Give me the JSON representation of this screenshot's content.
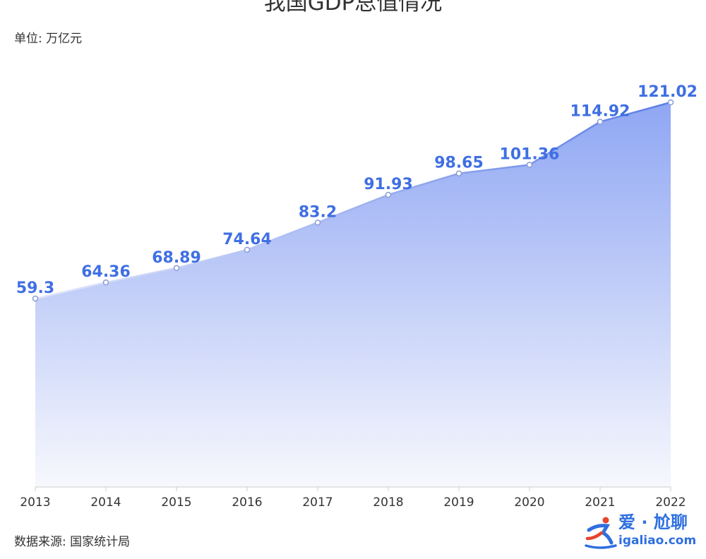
{
  "chart_data": {
    "type": "area",
    "title": "我国GDP总值情况",
    "unit_label": "单位: 万亿元",
    "source_label": "数据来源: 国家统计局",
    "categories": [
      "2013",
      "2014",
      "2015",
      "2016",
      "2017",
      "2018",
      "2019",
      "2020",
      "2021",
      "2022"
    ],
    "values": [
      59.3,
      64.36,
      68.89,
      74.64,
      83.2,
      91.93,
      98.65,
      101.36,
      114.92,
      121.02
    ],
    "data_labels": [
      "59.3",
      "64.36",
      "68.89",
      "74.64",
      "83.2",
      "91.93",
      "98.65",
      "101.36",
      "114.92",
      "121.02"
    ],
    "ylim": [
      0,
      121.02
    ],
    "xlabel": "",
    "ylabel": "",
    "grid": false,
    "colors": {
      "line_start": "#e4e8fb",
      "line_end": "#5b7ee5",
      "area_top": "#8fa6f3",
      "area_bottom": "#f7f8fd",
      "label": "#3f6fe3",
      "axis": "#cccccc",
      "point_fill": "#ffffff",
      "point_stroke": "#8a9ad8"
    }
  },
  "watermark": {
    "cn_text": "爱 · 尬聊",
    "url_text": "igaliao.com",
    "color": "#2f6fe0",
    "accent": "#e6452e"
  }
}
